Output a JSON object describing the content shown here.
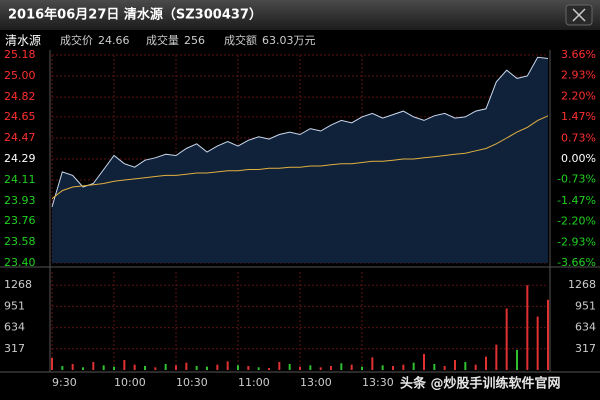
{
  "window": {
    "title": "2016年06月27日 清水源（SZ300437）"
  },
  "info": {
    "name": "清水源",
    "items": [
      {
        "label": "成交价",
        "value": 24.66
      },
      {
        "label": "成交量",
        "value": 256
      },
      {
        "label": "成交额",
        "value": "63.03万元"
      }
    ]
  },
  "watermark": "头条 @炒股手训练软件官网",
  "chart_data": [
    {
      "type": "line",
      "x": [
        0,
        5,
        10,
        15,
        20,
        25,
        30,
        35,
        40,
        45,
        50,
        55,
        60,
        65,
        70,
        75,
        80,
        85,
        90,
        95,
        100,
        105,
        110,
        115,
        120,
        125,
        130,
        135,
        140,
        145,
        150,
        155,
        160,
        165,
        170,
        175,
        180,
        185,
        190,
        195,
        200,
        205,
        210,
        215,
        220,
        225,
        230,
        235,
        240
      ],
      "xlim": [
        0,
        240
      ],
      "xticks": [
        {
          "value": 0,
          "label": "9:30"
        },
        {
          "value": 30,
          "label": "10:00"
        },
        {
          "value": 60,
          "label": "10:30"
        },
        {
          "value": 90,
          "label": "11:00"
        },
        {
          "value": 120,
          "label": "13:00"
        },
        {
          "value": 150,
          "label": "13:30"
        }
      ],
      "ylim": [
        23.4,
        25.18
      ],
      "yticks": [
        25.18,
        {
          "value": 25,
          "label": "25.00"
        },
        24.82,
        24.65,
        24.47,
        24.29,
        24.11,
        23.93,
        23.76,
        23.58,
        {
          "value": 23.4,
          "label": "23.40"
        }
      ],
      "y2lim": [
        -3.66,
        3.66
      ],
      "y2ticks": [
        {
          "value": 3.66,
          "label": "3.66%"
        },
        {
          "value": 2.93,
          "label": "2.93%"
        },
        {
          "value": 2.2,
          "label": "2.20%"
        },
        {
          "value": 1.47,
          "label": "1.47%"
        },
        {
          "value": 0.73,
          "label": "0.73%"
        },
        {
          "value": 0,
          "label": "0.00%"
        },
        {
          "value": -0.73,
          "label": "-0.73%"
        },
        {
          "value": -1.47,
          "label": "-1.47%"
        },
        {
          "value": -2.2,
          "label": "-2.20%"
        },
        {
          "value": -2.93,
          "label": "-2.93%"
        },
        {
          "value": -3.66,
          "label": "-3.66%"
        }
      ],
      "grid": true,
      "series": [
        {
          "color": "#c9d9ee",
          "fill": "#10213a",
          "values": [
            23.88,
            24.18,
            24.15,
            24.05,
            24.08,
            24.2,
            24.32,
            24.25,
            24.22,
            24.28,
            24.3,
            24.33,
            24.32,
            24.38,
            24.42,
            24.35,
            24.4,
            24.44,
            24.4,
            24.45,
            24.48,
            24.46,
            24.5,
            24.52,
            24.5,
            24.55,
            24.53,
            24.58,
            24.62,
            24.6,
            24.65,
            24.68,
            24.64,
            24.67,
            24.7,
            24.65,
            24.62,
            24.66,
            24.68,
            24.64,
            24.65,
            24.7,
            24.72,
            24.95,
            25.05,
            24.98,
            25.0,
            25.16,
            25.15
          ]
        },
        {
          "color": "#e0b040",
          "values": [
            23.95,
            24.02,
            24.05,
            24.06,
            24.07,
            24.08,
            24.1,
            24.11,
            24.12,
            24.13,
            24.14,
            24.15,
            24.15,
            24.16,
            24.17,
            24.17,
            24.18,
            24.19,
            24.19,
            24.2,
            24.2,
            24.21,
            24.21,
            24.22,
            24.22,
            24.23,
            24.23,
            24.24,
            24.25,
            24.25,
            24.26,
            24.27,
            24.27,
            24.28,
            24.29,
            24.29,
            24.3,
            24.31,
            24.32,
            24.33,
            24.34,
            24.36,
            24.38,
            24.42,
            24.47,
            24.52,
            24.56,
            24.62,
            24.66
          ]
        }
      ]
    },
    {
      "type": "bar",
      "x": [
        0,
        5,
        10,
        15,
        20,
        25,
        30,
        35,
        40,
        45,
        50,
        55,
        60,
        65,
        70,
        75,
        80,
        85,
        90,
        95,
        100,
        105,
        110,
        115,
        120,
        125,
        130,
        135,
        140,
        145,
        150,
        155,
        160,
        165,
        170,
        175,
        180,
        185,
        190,
        195,
        200,
        205,
        210,
        215,
        220,
        225,
        230,
        235,
        240
      ],
      "xlim": [
        0,
        240
      ],
      "ylim": [
        0,
        1466
      ],
      "yticks": [
        1268,
        951,
        634,
        317
      ],
      "grid": true,
      "values": [
        180,
        60,
        90,
        40,
        120,
        70,
        50,
        150,
        80,
        60,
        40,
        90,
        70,
        110,
        60,
        50,
        80,
        130,
        70,
        60,
        40,
        30,
        120,
        90,
        50,
        70,
        40,
        60,
        100,
        80,
        50,
        190,
        70,
        60,
        80,
        110,
        240,
        90,
        60,
        150,
        120,
        80,
        200,
        380,
        920,
        300,
        1268,
        800,
        1050
      ],
      "colors": [
        "#e03030",
        "#30c030",
        "#e03030",
        "#30c030",
        "#e03030",
        "#30c030",
        "#30c030",
        "#e03030",
        "#e03030",
        "#30c030",
        "#e03030",
        "#30c030",
        "#e03030",
        "#e03030",
        "#30c030",
        "#30c030",
        "#e03030",
        "#e03030",
        "#30c030",
        "#e03030",
        "#30c030",
        "#e03030",
        "#e03030",
        "#30c030",
        "#e03030",
        "#30c030",
        "#e03030",
        "#e03030",
        "#30c030",
        "#e03030",
        "#30c030",
        "#e03030",
        "#30c030",
        "#e03030",
        "#e03030",
        "#30c030",
        "#e03030",
        "#30c030",
        "#e03030",
        "#e03030",
        "#30c030",
        "#e03030",
        "#e03030",
        "#e03030",
        "#e03030",
        "#30c030",
        "#e03030",
        "#e03030",
        "#e03030"
      ]
    }
  ]
}
